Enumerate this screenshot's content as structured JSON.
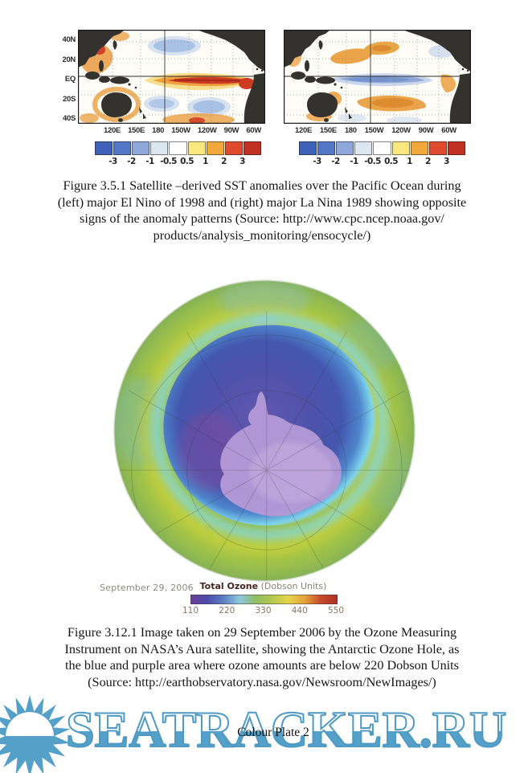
{
  "page": {
    "plate_label": "Colour Plate 2"
  },
  "watermark": {
    "text": "SEATRACKER.RU",
    "color": "#55A0C8"
  },
  "fig351": {
    "caption_lines": [
      "Figure 3.5.1  Satellite –derived SST anomalies over the Pacific Ocean during",
      "(left) major El Nino of 1998 and (right) major La Nina 1989 showing opposite",
      "signs of the anomaly patterns (Source: http://www.cpc.ncep.noaa.gov/",
      "products/analysis_monitoring/ensocycle/)"
    ],
    "y_axis_labels": [
      "40N",
      "20N",
      "EQ",
      "20S",
      "40S"
    ],
    "x_axis_labels": [
      "120E",
      "150E",
      "180",
      "150W",
      "120W",
      "90W",
      "60W"
    ],
    "colorbar": {
      "labels": [
        "-3",
        "-2",
        "-1",
        "-0.5",
        "0.5",
        "1",
        "2",
        "3"
      ],
      "colors": [
        "#3E62B8",
        "#5377C4",
        "#8FA8DC",
        "#DCE6F0",
        "#FFFFFF",
        "#FAE87E",
        "#F2A93C",
        "#E04A2E",
        "#C03124"
      ]
    }
  },
  "fig3121": {
    "date_label": "September 29, 2006",
    "legend_title": "Total Ozone",
    "legend_units": " (Dobson Units)",
    "colorbar": {
      "tick_labels": [
        "110",
        "220",
        "330",
        "440",
        "550"
      ],
      "gradient_stops": [
        "#6B3F9D",
        "#4B4CA8",
        "#5C7FC4",
        "#8FC8DE",
        "#8FBE62",
        "#B4C94E",
        "#E6D44E",
        "#E5A43C",
        "#C64A2E",
        "#B23026"
      ]
    },
    "caption_lines": [
      "Figure 3.12.1  Image taken on 29 September 2006 by the Ozone Measuring",
      "Instrument on NASA’s Aura satellite, showing the Antarctic Ozone Hole, as",
      "the blue and purple area where ozone amounts are below 220 Dobson Units",
      "(Source: http://earthobservatory.nasa.gov/Newsroom/NewImages/)"
    ]
  }
}
